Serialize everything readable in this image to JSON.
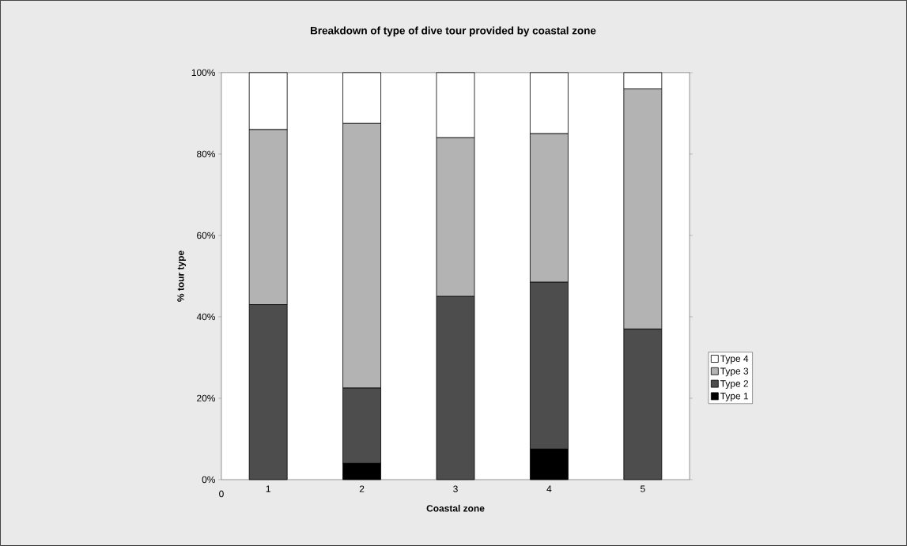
{
  "chart_data": {
    "type": "bar",
    "title": "Breakdown of type of dive tour provided by coastal zone",
    "xlabel": "Coastal zone",
    "ylabel": "% tour type",
    "categories": [
      "1",
      "2",
      "3",
      "4",
      "5"
    ],
    "series": [
      {
        "name": "Type 1",
        "color": "#000000",
        "values": [
          0,
          4,
          0,
          7.5,
          0
        ]
      },
      {
        "name": "Type 2",
        "color": "#4d4d4d",
        "values": [
          43,
          18.5,
          45,
          41,
          37
        ]
      },
      {
        "name": "Type 3",
        "color": "#b3b3b3",
        "values": [
          43,
          65,
          39,
          36.5,
          59
        ]
      },
      {
        "name": "Type 4",
        "color": "#ffffff",
        "values": [
          14,
          12.5,
          16,
          15,
          4
        ]
      }
    ],
    "stacked": true,
    "ylim": [
      0,
      100
    ],
    "yticks": [
      {
        "value": 0,
        "label": "0%"
      },
      {
        "value": 20,
        "label": "20%"
      },
      {
        "value": 40,
        "label": "40%"
      },
      {
        "value": 60,
        "label": "60%"
      },
      {
        "value": 80,
        "label": "80%"
      },
      {
        "value": 100,
        "label": "100%"
      }
    ],
    "annotations": [
      "0"
    ],
    "legend": "right"
  }
}
